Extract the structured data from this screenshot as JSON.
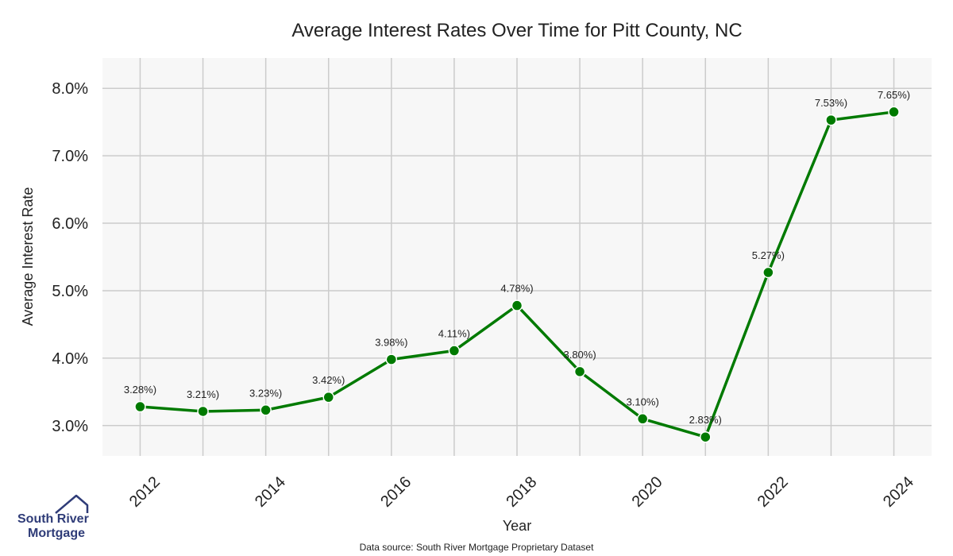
{
  "chart_data": {
    "type": "line",
    "title": "Average Interest Rates Over Time for Pitt County, NC",
    "xlabel": "Year",
    "ylabel": "Average Interest Rate",
    "x": [
      2012,
      2013,
      2014,
      2015,
      2016,
      2017,
      2018,
      2019,
      2020,
      2021,
      2022,
      2023,
      2024
    ],
    "series": [
      {
        "values": [
          3.28,
          3.21,
          3.23,
          3.42,
          3.98,
          4.11,
          4.78,
          3.8,
          3.1,
          2.83,
          5.27,
          7.53,
          7.65
        ]
      }
    ],
    "data_labels": [
      "3.28%)",
      "3.21%)",
      "3.23%)",
      "3.42%)",
      "3.98%)",
      "4.11%)",
      "4.78%)",
      "3.80%)",
      "3.10%)",
      "2.83%)",
      "5.27%)",
      "7.53%)",
      "7.65%)"
    ],
    "x_ticks": [
      "2012",
      "2014",
      "2016",
      "2018",
      "2020",
      "2022",
      "2024"
    ],
    "y_ticks": [
      "3.0%",
      "4.0%",
      "5.0%",
      "6.0%",
      "7.0%",
      "8.0%"
    ],
    "xlim": [
      2011.4,
      2024.6
    ],
    "ylim": [
      2.55,
      8.45
    ],
    "grid": true,
    "colors": {
      "line": "#007a00",
      "plot_background": "#f7f7f7",
      "grid": "#cccccc"
    }
  },
  "source_note": "Data source: South River Mortgage Proprietary Dataset",
  "logo": {
    "line1": "South River",
    "line2": "Mortgage",
    "color": "#2f3c78"
  }
}
